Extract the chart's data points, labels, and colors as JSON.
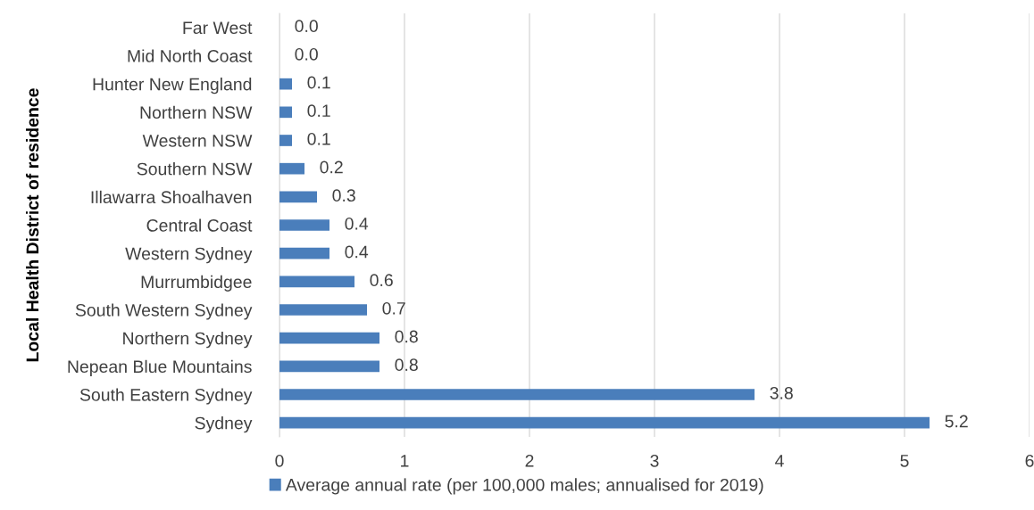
{
  "chart_data": {
    "type": "bar",
    "orientation": "horizontal",
    "ylabel": "Local Health District of residence",
    "categories": [
      "Far West",
      "Mid North Coast",
      "Hunter New England",
      "Northern NSW",
      "Western NSW",
      "Southern NSW",
      "Illawarra Shoalhaven",
      "Central Coast",
      "Western Sydney",
      "Murrumbidgee",
      "South Western Sydney",
      "Northern Sydney",
      "Nepean Blue Mountains",
      "South Eastern Sydney",
      "Sydney"
    ],
    "series": [
      {
        "name": "Average annual rate (per 100,000 males; annualised for 2019)",
        "color": "#4a7ebb",
        "values": [
          0.0,
          0.0,
          0.1,
          0.1,
          0.1,
          0.2,
          0.3,
          0.4,
          0.4,
          0.6,
          0.7,
          0.8,
          0.8,
          3.8,
          5.2
        ],
        "value_labels": [
          "0.0",
          "0.0",
          "0.1",
          "0.1",
          "0.1",
          "0.2",
          "0.3",
          "0.4",
          "0.4",
          "0.6",
          "0.7",
          "0.8",
          "0.8",
          "3.8",
          "5.2"
        ]
      }
    ],
    "xlim": [
      0,
      6
    ],
    "xticks": [
      0,
      1,
      2,
      3,
      4,
      5,
      6
    ],
    "grid": "x",
    "legend": "bottom"
  }
}
